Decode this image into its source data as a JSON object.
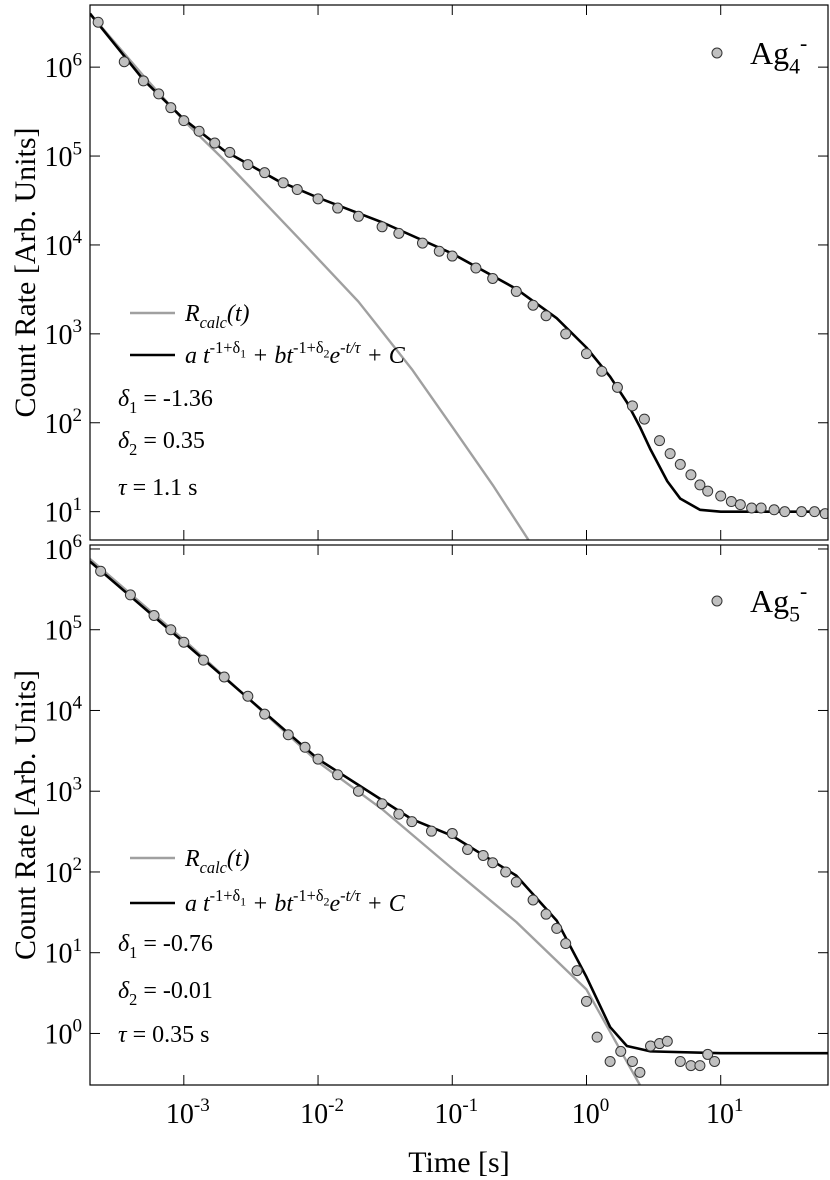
{
  "chart_data": [
    {
      "type": "line",
      "log_x": true,
      "log_y": true,
      "show_xtick_labels": false,
      "ylabel": "Count Rate [Arb. Units]",
      "xlim": [
        0.0002,
        63
      ],
      "ylim": [
        4.8,
        5000000
      ],
      "xticks": [
        0.001,
        0.01,
        0.1,
        1,
        10
      ],
      "yticks": [
        {
          "value": 10,
          "label": [
            "10",
            "1"
          ]
        },
        {
          "value": 100,
          "label": [
            "10",
            "2"
          ]
        },
        {
          "value": 1000,
          "label": [
            "10",
            "3"
          ]
        },
        {
          "value": 10000,
          "label": [
            "10",
            "4"
          ]
        },
        {
          "value": 100000,
          "label": [
            "10",
            "5"
          ]
        },
        {
          "value": 1000000,
          "label": [
            "10",
            "6"
          ]
        }
      ],
      "series": [
        {
          "kind": "scatter",
          "color": "#c0c0c0",
          "name": [
            {
              "text": "Ag"
            },
            {
              "text": "4",
              "shift": "sub"
            },
            {
              "text": "-",
              "shift": "sup"
            }
          ],
          "x": [
            0.00023,
            0.00036,
            0.0005,
            0.00065,
            0.0008,
            0.001,
            0.0013,
            0.0017,
            0.0022,
            0.003,
            0.004,
            0.0055,
            0.007,
            0.01,
            0.014,
            0.02,
            0.03,
            0.04,
            0.06,
            0.08,
            0.1,
            0.15,
            0.2,
            0.3,
            0.4,
            0.5,
            0.7,
            1,
            1.3,
            1.7,
            2.2,
            2.7,
            3.5,
            4.2,
            5,
            6,
            7,
            8,
            10,
            12,
            14,
            17,
            20,
            25,
            30,
            40,
            50,
            60
          ],
          "values": [
            3200000,
            1150000,
            700000,
            500000,
            350000,
            250000,
            190000,
            140000,
            110000,
            80000,
            65000,
            50000,
            42000,
            33000,
            26000,
            21000,
            16000,
            13500,
            10500,
            8500,
            7500,
            5500,
            4200,
            3000,
            2100,
            1600,
            1000,
            600,
            380,
            250,
            155,
            110,
            63,
            45,
            34,
            26,
            20,
            17,
            15,
            13,
            12,
            11,
            11,
            10.5,
            10,
            10,
            10,
            9.5
          ]
        },
        {
          "kind": "line",
          "color": "#a0a0a0",
          "name": [
            {
              "text": "R",
              "italic": true
            },
            {
              "text": "calc",
              "shift": "sub",
              "italic": true
            },
            {
              "text": "(t)",
              "italic": true
            }
          ],
          "x": [
            0.0002,
            0.0005,
            0.001,
            0.002,
            0.004,
            0.008,
            0.02,
            0.05,
            0.1,
            0.2,
            0.4
          ],
          "values": [
            4000000,
            800000,
            250000,
            90000,
            30000,
            10000,
            2300,
            400,
            90,
            20,
            4
          ]
        },
        {
          "kind": "line",
          "color": "#000000",
          "name": [
            {
              "text": "a t",
              "italic": true
            },
            {
              "text": "-1+δ",
              "shift": "sup"
            },
            {
              "text": "1",
              "shift": "supsub"
            },
            {
              "text": " + b",
              "italic": true
            },
            {
              "text": "t",
              "italic": true
            },
            {
              "text": "-1+δ",
              "shift": "sup"
            },
            {
              "text": "2",
              "shift": "supsub"
            },
            {
              "text": "e",
              "italic": true
            },
            {
              "text": "-t/τ",
              "shift": "sup",
              "italic": true
            },
            {
              "text": " + C",
              "italic": true
            }
          ],
          "x": [
            0.0002,
            0.0005,
            0.001,
            0.002,
            0.005,
            0.01,
            0.03,
            0.1,
            0.3,
            0.6,
            1,
            1.5,
            2,
            2.5,
            3,
            4,
            5,
            7,
            10,
            63
          ],
          "values": [
            4000000,
            720000,
            260000,
            115000,
            53000,
            34000,
            18000,
            8000,
            3200,
            1500,
            700,
            330,
            170,
            90,
            50,
            22,
            14,
            10.5,
            10,
            10
          ]
        }
      ],
      "annotations": [
        [
          {
            "text": "δ",
            "italic": true
          },
          {
            "text": "1",
            "shift": "sub"
          },
          {
            "text": " = -1.36"
          }
        ],
        [
          {
            "text": "δ",
            "italic": true
          },
          {
            "text": "2",
            "shift": "sub"
          },
          {
            "text": " = 0.35"
          }
        ],
        [
          {
            "text": "τ",
            "italic": true
          },
          {
            "text": " =  1.1 s"
          }
        ]
      ]
    },
    {
      "type": "line",
      "log_x": true,
      "log_y": true,
      "show_xtick_labels": true,
      "xlabel": "Time [s]",
      "ylabel": "Count Rate [Arb. Units]",
      "xlim": [
        0.0002,
        63
      ],
      "ylim": [
        0.23,
        1120000
      ],
      "xticks": [
        {
          "value": 0.001,
          "label": [
            "10",
            "-3"
          ]
        },
        {
          "value": 0.01,
          "label": [
            "10",
            "-2"
          ]
        },
        {
          "value": 0.1,
          "label": [
            "10",
            "-1"
          ]
        },
        {
          "value": 1,
          "label": [
            "10",
            "0"
          ]
        },
        {
          "value": 10,
          "label": [
            "10",
            "1"
          ]
        }
      ],
      "yticks": [
        {
          "value": 1,
          "label": [
            "10",
            "0"
          ]
        },
        {
          "value": 10,
          "label": [
            "10",
            "1"
          ]
        },
        {
          "value": 100,
          "label": [
            "10",
            "2"
          ]
        },
        {
          "value": 1000,
          "label": [
            "10",
            "3"
          ]
        },
        {
          "value": 10000,
          "label": [
            "10",
            "4"
          ]
        },
        {
          "value": 100000,
          "label": [
            "10",
            "5"
          ]
        },
        {
          "value": 1000000,
          "label": [
            "10",
            "6"
          ]
        }
      ],
      "series": [
        {
          "kind": "scatter",
          "color": "#c0c0c0",
          "name": [
            {
              "text": "Ag"
            },
            {
              "text": "5",
              "shift": "sub"
            },
            {
              "text": "-",
              "shift": "sup"
            }
          ],
          "x": [
            0.00024,
            0.0004,
            0.0006,
            0.0008,
            0.001,
            0.0014,
            0.002,
            0.003,
            0.004,
            0.006,
            0.008,
            0.01,
            0.014,
            0.02,
            0.03,
            0.04,
            0.05,
            0.07,
            0.1,
            0.13,
            0.17,
            0.2,
            0.25,
            0.3,
            0.4,
            0.5,
            0.6,
            0.7,
            0.85,
            1,
            1.2,
            1.5,
            1.8,
            2.2,
            2.5,
            3,
            3.5,
            4,
            5,
            6,
            7,
            8,
            9
          ],
          "values": [
            530000,
            270000,
            150000,
            100000,
            70000,
            42000,
            26000,
            15000,
            9000,
            5000,
            3500,
            2500,
            1600,
            1000,
            700,
            520,
            420,
            320,
            300,
            190,
            160,
            130,
            100,
            75,
            45,
            30,
            20,
            13,
            6,
            2.5,
            0.9,
            0.45,
            0.6,
            0.45,
            0.33,
            0.7,
            0.75,
            0.8,
            0.45,
            0.4,
            0.4,
            0.55,
            0.45
          ]
        },
        {
          "kind": "line",
          "color": "#a0a0a0",
          "name": [
            {
              "text": "R",
              "italic": true
            },
            {
              "text": "calc",
              "shift": "sub",
              "italic": true
            },
            {
              "text": "(t)",
              "italic": true
            }
          ],
          "x": [
            0.0002,
            0.001,
            0.01,
            0.03,
            0.1,
            0.3,
            1,
            2.5
          ],
          "values": [
            750000,
            75000,
            2300,
            600,
            110,
            24,
            3.5,
            0.23
          ]
        },
        {
          "kind": "line",
          "color": "#000000",
          "name": [
            {
              "text": "a t",
              "italic": true
            },
            {
              "text": "-1+δ",
              "shift": "sup"
            },
            {
              "text": "1",
              "shift": "supsub"
            },
            {
              "text": " + b",
              "italic": true
            },
            {
              "text": "t",
              "italic": true
            },
            {
              "text": "-1+δ",
              "shift": "sup"
            },
            {
              "text": "2",
              "shift": "supsub"
            },
            {
              "text": "e",
              "italic": true
            },
            {
              "text": "-t/τ",
              "shift": "sup",
              "italic": true
            },
            {
              "text": " + C",
              "italic": true
            }
          ],
          "x": [
            0.0002,
            0.001,
            0.01,
            0.05,
            0.1,
            0.3,
            0.6,
            1,
            1.5,
            2,
            3,
            10,
            63
          ],
          "values": [
            700000,
            70000,
            2500,
            450,
            280,
            90,
            25,
            5,
            1.2,
            0.7,
            0.6,
            0.57,
            0.57
          ]
        }
      ],
      "annotations": [
        [
          {
            "text": "δ",
            "italic": true
          },
          {
            "text": "1",
            "shift": "sub"
          },
          {
            "text": " = -0.76"
          }
        ],
        [
          {
            "text": "δ",
            "italic": true
          },
          {
            "text": "2",
            "shift": "sub"
          },
          {
            "text": " = -0.01"
          }
        ],
        [
          {
            "text": "τ",
            "italic": true
          },
          {
            "text": " =  0.35 s"
          }
        ]
      ]
    }
  ]
}
